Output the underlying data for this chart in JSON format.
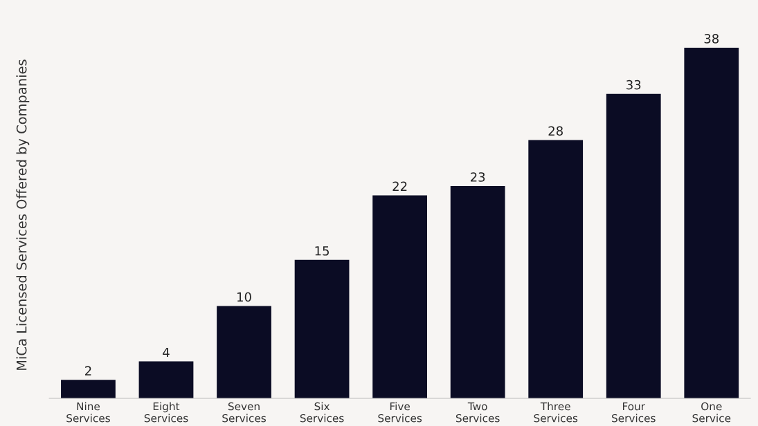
{
  "chart_data": {
    "type": "bar",
    "ylabel": "MiCa Licensed Services Offered by Companies",
    "categories": [
      "Nine\nServices",
      "Eight\nServices",
      "Seven\nServices",
      "Six\nServices",
      "Five\nServices",
      "Two\nServices",
      "Three\nServices",
      "Four\nServices",
      "One\nService"
    ],
    "values": [
      2,
      4,
      10,
      15,
      22,
      23,
      28,
      33,
      38
    ],
    "color": "#0b0c24",
    "data_labels": true,
    "grid": false,
    "legend": false,
    "tick_labels": "x"
  }
}
